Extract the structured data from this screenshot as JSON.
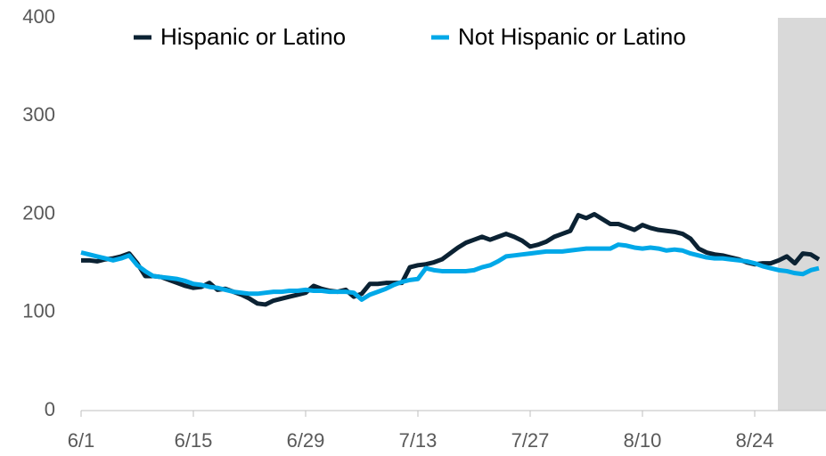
{
  "chart_data": {
    "type": "line",
    "categories": [
      "6/1",
      null,
      null,
      null,
      null,
      null,
      null,
      null,
      null,
      null,
      null,
      null,
      null,
      null,
      "6/15",
      null,
      null,
      null,
      null,
      null,
      null,
      null,
      null,
      null,
      null,
      null,
      null,
      null,
      "6/29",
      null,
      null,
      null,
      null,
      null,
      null,
      null,
      null,
      null,
      null,
      null,
      null,
      null,
      "7/13",
      null,
      null,
      null,
      null,
      null,
      null,
      null,
      null,
      null,
      null,
      null,
      null,
      null,
      "7/27",
      null,
      null,
      null,
      null,
      null,
      null,
      null,
      null,
      null,
      null,
      null,
      null,
      null,
      "8/10",
      null,
      null,
      null,
      null,
      null,
      null,
      null,
      null,
      null,
      null,
      null,
      null,
      null,
      "8/24",
      null,
      null,
      null,
      null,
      null,
      null,
      null,
      null
    ],
    "series": [
      {
        "name": "Hispanic or Latino",
        "color": "#0b2233",
        "values": [
          153,
          153,
          152,
          154,
          155,
          157,
          160,
          150,
          137,
          137,
          136,
          133,
          130,
          127,
          125,
          126,
          130,
          123,
          124,
          121,
          118,
          114,
          109,
          108,
          112,
          114,
          116,
          118,
          120,
          127,
          124,
          122,
          121,
          123,
          116,
          119,
          129,
          129,
          130,
          130,
          130,
          146,
          148,
          149,
          151,
          154,
          160,
          166,
          171,
          174,
          177,
          174,
          177,
          180,
          177,
          173,
          167,
          169,
          172,
          177,
          180,
          183,
          199,
          196,
          200,
          195,
          190,
          190,
          187,
          184,
          189,
          186,
          184,
          183,
          182,
          180,
          175,
          165,
          161,
          159,
          158,
          156,
          154,
          151,
          149,
          150,
          150,
          153,
          157,
          150,
          160,
          159,
          154
        ]
      },
      {
        "name": "Not Hispanic or Latino",
        "color": "#00a8e8",
        "values": [
          161,
          159,
          157,
          155,
          153,
          155,
          158,
          148,
          142,
          137,
          136,
          135,
          134,
          132,
          129,
          128,
          126,
          125,
          123,
          121,
          120,
          119,
          119,
          120,
          121,
          121,
          122,
          122,
          123,
          122,
          122,
          121,
          121,
          121,
          120,
          113,
          118,
          121,
          124,
          128,
          131,
          133,
          134,
          145,
          143,
          142,
          142,
          142,
          142,
          143,
          146,
          148,
          152,
          157,
          158,
          159,
          160,
          161,
          162,
          162,
          162,
          163,
          164,
          165,
          165,
          165,
          165,
          169,
          168,
          166,
          165,
          166,
          165,
          163,
          164,
          163,
          160,
          158,
          156,
          155,
          155,
          154,
          153,
          152,
          150,
          147,
          145,
          143,
          142,
          140,
          139,
          143,
          145
        ]
      }
    ],
    "ylim": [
      0,
      400
    ],
    "yticks": [
      0,
      100,
      200,
      300,
      400
    ],
    "grid": false,
    "legend": "top",
    "shaded_from": 87
  }
}
